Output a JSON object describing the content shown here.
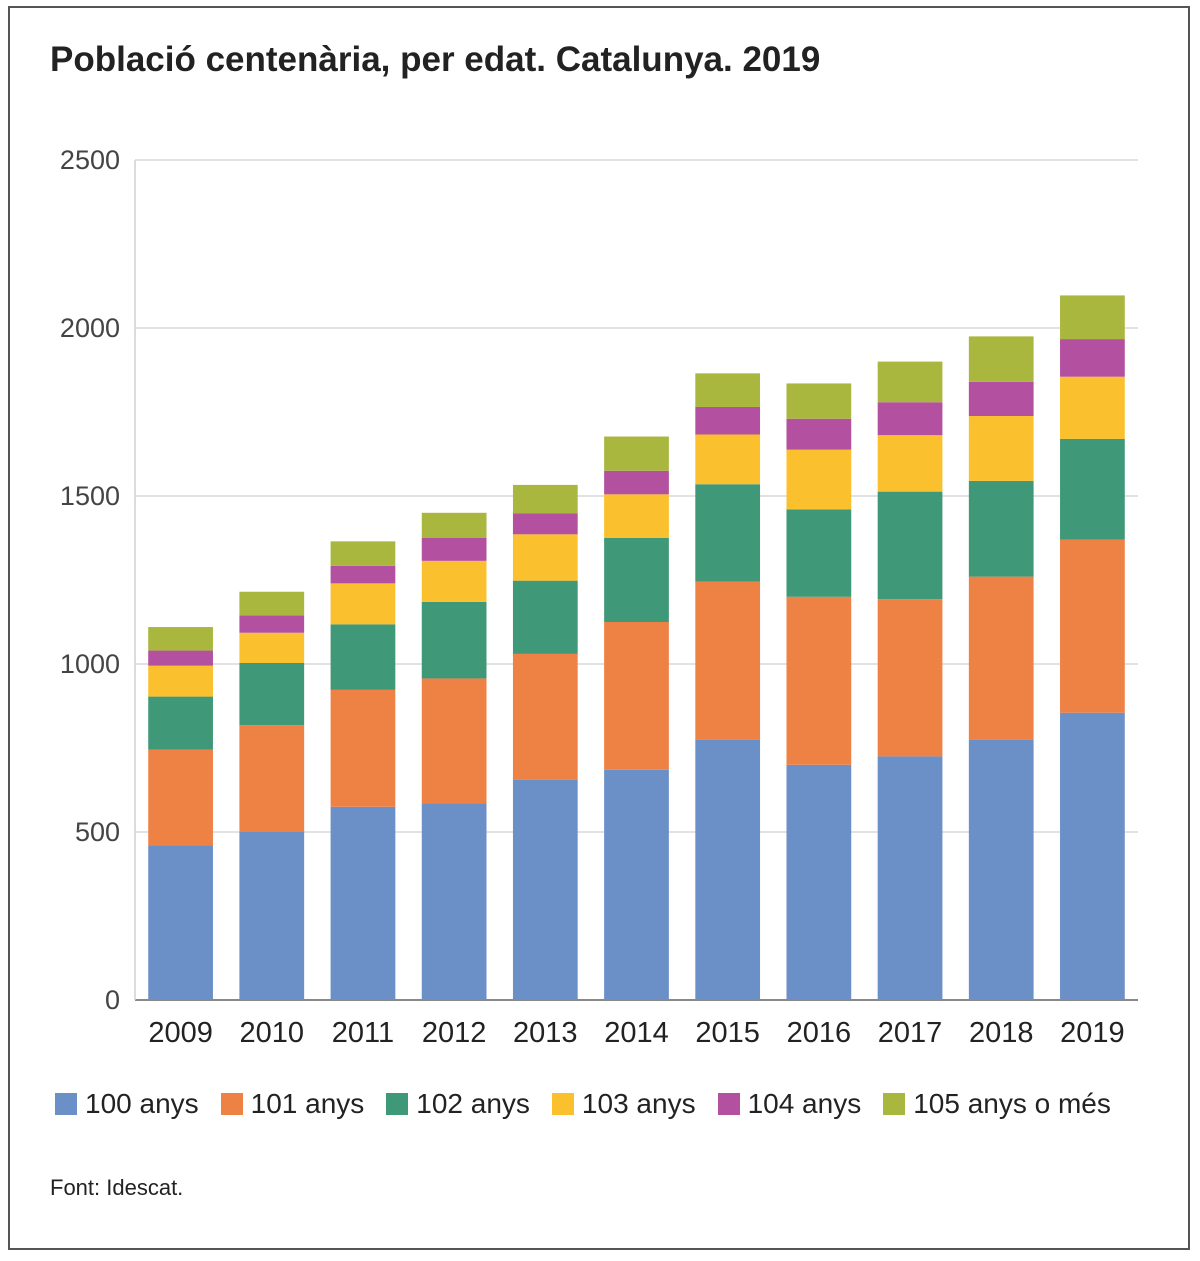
{
  "chart_data": {
    "type": "bar",
    "stacked": true,
    "title": "Població centenària, per edat. Catalunya. 2019",
    "source": "Font: Idescat.",
    "categories": [
      "2009",
      "2010",
      "2011",
      "2012",
      "2013",
      "2014",
      "2015",
      "2016",
      "2017",
      "2018",
      "2019"
    ],
    "ylim": [
      0,
      2500
    ],
    "yticks": [
      0,
      500,
      1000,
      1500,
      2000,
      2500
    ],
    "grid": true,
    "legend_position": "bottom",
    "series": [
      {
        "name": "100 anys",
        "color": "#6b8fc7",
        "values": [
          460,
          500,
          575,
          585,
          655,
          685,
          775,
          700,
          725,
          775,
          855
        ]
      },
      {
        "name": "101 anys",
        "color": "#ee8245",
        "values": [
          285,
          318,
          348,
          372,
          375,
          440,
          470,
          500,
          468,
          485,
          515
        ]
      },
      {
        "name": "102 anys",
        "color": "#3f9878",
        "values": [
          158,
          185,
          195,
          228,
          218,
          250,
          290,
          260,
          320,
          285,
          300
        ]
      },
      {
        "name": "103 anys",
        "color": "#fbc02d",
        "values": [
          92,
          90,
          122,
          122,
          138,
          130,
          148,
          178,
          168,
          193,
          185
        ]
      },
      {
        "name": "104 anys",
        "color": "#b3509f",
        "values": [
          45,
          52,
          52,
          68,
          62,
          70,
          82,
          92,
          98,
          102,
          112
        ]
      },
      {
        "name": "105 anys o més",
        "color": "#a9b73f",
        "values": [
          70,
          70,
          73,
          75,
          85,
          102,
          100,
          105,
          121,
          135,
          130
        ]
      }
    ]
  }
}
